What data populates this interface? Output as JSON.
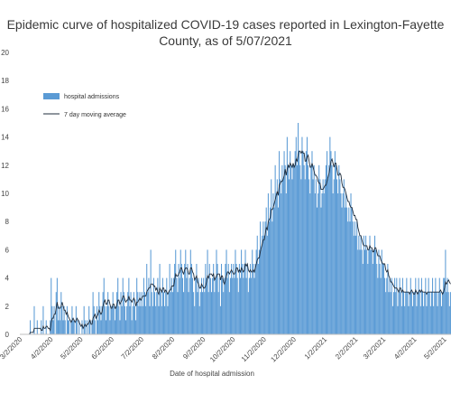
{
  "chart_data": {
    "type": "bar",
    "title_lines": [
      "Epidemic curve of hospitalized COVID-19 cases reported in Lexington-Fayette",
      "County, as of 5/07/2021"
    ],
    "xlabel": "Date of hospital admission",
    "ylabel": "",
    "x_tick_labels": [
      "3/2/2020",
      "4/2/2020",
      "5/2/2020",
      "6/2/2020",
      "7/2/2020",
      "8/2/2020",
      "9/2/2020",
      "10/2/2020",
      "11/2/2020",
      "12/2/2020",
      "1/2/2021",
      "2/2/2021",
      "3/2/2021",
      "4/2/2021",
      "5/2/2021"
    ],
    "y_tick_labels": [
      "0",
      "2",
      "4",
      "6",
      "8",
      "10",
      "12",
      "14",
      "16",
      "18",
      "20"
    ],
    "ylim": [
      0,
      20
    ],
    "grid": "none",
    "legend_position": "top-left",
    "series": [
      {
        "name": "hospital admissions",
        "kind": "bar",
        "color": "#5b9bd5"
      },
      {
        "name": "7 day moving average",
        "kind": "line",
        "color": "#1f2d3d"
      }
    ],
    "monthly_values": [
      {
        "month": "3/2020",
        "values": [
          0,
          0,
          0,
          0,
          0,
          0,
          0,
          0,
          0,
          0,
          1,
          0,
          0,
          0,
          2,
          0,
          0,
          1,
          0,
          0,
          0,
          1,
          0,
          2,
          0,
          0,
          1,
          0,
          0,
          0,
          1
        ]
      },
      {
        "month": "4/2020",
        "values": [
          4,
          2,
          1,
          2,
          0,
          3,
          4,
          1,
          2,
          1,
          3,
          2,
          1,
          2,
          1,
          0,
          2,
          1,
          1,
          0,
          1,
          2,
          1,
          1,
          0,
          2,
          1,
          0,
          1,
          0
        ]
      },
      {
        "month": "5/2020",
        "values": [
          0,
          1,
          0,
          2,
          1,
          0,
          1,
          0,
          2,
          1,
          0,
          1,
          3,
          2,
          1,
          0,
          2,
          1,
          3,
          2,
          1,
          2,
          3,
          4,
          2,
          1,
          2,
          3,
          2,
          1,
          2
        ]
      },
      {
        "month": "6/2020",
        "values": [
          2,
          3,
          2,
          1,
          2,
          3,
          4,
          2,
          1,
          3,
          2,
          4,
          3,
          2,
          1,
          2,
          3,
          4,
          2,
          3,
          1,
          2,
          3,
          2,
          1,
          4,
          3,
          2,
          3,
          2
        ]
      },
      {
        "month": "7/2020",
        "values": [
          3,
          2,
          4,
          3,
          2,
          5,
          3,
          4,
          2,
          6,
          3,
          2,
          4,
          3,
          2,
          3,
          4,
          2,
          5,
          3,
          2,
          4,
          3,
          2,
          3,
          4,
          2,
          3,
          5,
          3,
          4
        ]
      },
      {
        "month": "8/2020",
        "values": [
          3,
          4,
          5,
          6,
          4,
          3,
          5,
          4,
          6,
          5,
          4,
          3,
          5,
          6,
          4,
          5,
          3,
          4,
          6,
          5,
          4,
          3,
          2,
          4,
          5,
          3,
          4,
          2,
          3,
          4,
          3
        ]
      },
      {
        "month": "9/2020",
        "values": [
          4,
          3,
          5,
          4,
          6,
          3,
          5,
          4,
          3,
          4,
          5,
          3,
          4,
          6,
          5,
          3,
          4,
          2,
          5,
          4,
          3,
          4,
          5,
          6,
          4,
          5,
          3,
          4,
          5,
          4
        ]
      },
      {
        "month": "10/2020",
        "values": [
          5,
          4,
          6,
          5,
          4,
          3,
          5,
          4,
          6,
          5,
          4,
          5,
          6,
          4,
          5,
          3,
          4,
          5,
          4,
          6,
          5,
          4,
          5,
          6,
          7,
          5,
          6,
          8,
          6,
          7,
          8
        ]
      },
      {
        "month": "11/2020",
        "values": [
          7,
          8,
          9,
          7,
          10,
          8,
          9,
          11,
          8,
          10,
          9,
          12,
          10,
          11,
          9,
          13,
          11,
          10,
          12,
          11,
          13,
          12,
          10,
          14,
          12,
          11,
          13,
          12,
          11,
          12
        ]
      },
      {
        "month": "12/2020",
        "values": [
          12,
          13,
          14,
          12,
          15,
          13,
          12,
          11,
          14,
          13,
          12,
          11,
          13,
          14,
          12,
          11,
          10,
          12,
          13,
          11,
          12,
          10,
          11,
          9,
          10,
          12,
          11,
          9,
          10,
          11,
          10
        ]
      },
      {
        "month": "1/2021",
        "values": [
          11,
          12,
          13,
          11,
          12,
          14,
          13,
          12,
          10,
          11,
          13,
          12,
          11,
          10,
          12,
          11,
          10,
          9,
          10,
          11,
          9,
          10,
          9,
          8,
          9,
          8,
          10,
          9,
          8,
          7,
          8
        ]
      },
      {
        "month": "2/2021",
        "values": [
          7,
          8,
          6,
          7,
          6,
          7,
          6,
          5,
          7,
          6,
          7,
          6,
          5,
          6,
          7,
          6,
          6,
          5,
          6,
          7,
          6,
          5,
          4,
          6,
          5,
          4,
          6,
          5
        ]
      },
      {
        "month": "3/2021",
        "values": [
          5,
          4,
          3,
          4,
          5,
          3,
          4,
          3,
          4,
          2,
          3,
          4,
          3,
          4,
          2,
          3,
          4,
          3,
          2,
          4,
          3,
          2,
          3,
          4,
          3,
          2,
          3,
          4,
          3,
          2,
          3
        ]
      },
      {
        "month": "4/2021",
        "values": [
          3,
          4,
          2,
          3,
          4,
          3,
          2,
          4,
          3,
          2,
          3,
          4,
          2,
          3,
          4,
          3,
          2,
          3,
          4,
          2,
          3,
          4,
          3,
          2,
          3,
          4,
          3,
          2,
          3,
          4
        ]
      },
      {
        "month": "5/2021",
        "values": [
          4,
          6,
          3,
          4,
          3,
          2,
          3
        ]
      }
    ]
  }
}
